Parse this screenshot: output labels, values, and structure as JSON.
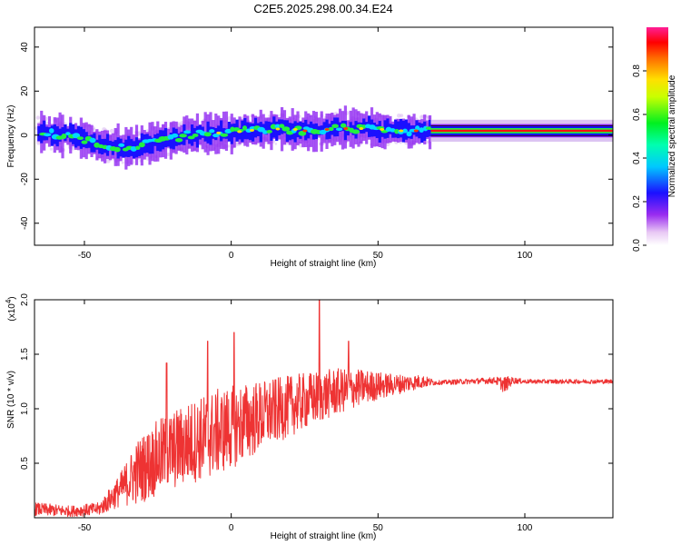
{
  "title": "C2E5.2025.298.00.34.E24",
  "chart_data": [
    {
      "type": "heatmap",
      "name": "spectrogram",
      "xlabel": "Height of straight line (km)",
      "ylabel": "Frequency (Hz)",
      "xlim": [
        -67,
        130
      ],
      "ylim": [
        -50,
        49
      ],
      "xticks": [
        -50,
        0,
        50,
        100
      ],
      "yticks": [
        -40,
        -20,
        0,
        20,
        40
      ],
      "ytick_labels": [
        "-40",
        "-20",
        "0",
        "20",
        "40"
      ],
      "xtick_labels": [
        "-50",
        "0",
        "50",
        "100"
      ],
      "ridge": {
        "x": [
          -65,
          -55,
          -45,
          -35,
          -25,
          -15,
          -5,
          5,
          15,
          25,
          35,
          45,
          55,
          65,
          70,
          80,
          90,
          100,
          110,
          120,
          130
        ],
        "freq": [
          1,
          0,
          -4,
          -6,
          -3,
          0,
          1,
          2,
          3,
          2,
          3,
          3,
          2,
          2,
          2,
          2,
          2,
          2,
          2,
          2,
          2
        ]
      },
      "colorbar": {
        "label": "Normalized spectral amplitude",
        "ticks": [
          "0.0",
          "0.2",
          "0.4",
          "0.6",
          "0.8"
        ],
        "tick_values": [
          0.0,
          0.2,
          0.4,
          0.6,
          0.8
        ],
        "range": [
          0,
          1
        ]
      }
    },
    {
      "type": "line",
      "name": "snr",
      "xlabel": "Height of straight line (km)",
      "ylabel": "SNR (10 * v/v)",
      "multiplier": "(x10",
      "multiplier_exp": "4",
      "multiplier_close": ")",
      "xlim": [
        -67,
        130
      ],
      "ylim": [
        0,
        2.0
      ],
      "xticks": [
        -50,
        0,
        50,
        100
      ],
      "xtick_labels": [
        "-50",
        "0",
        "50",
        "100"
      ],
      "yticks": [
        0.5,
        1.0,
        1.5,
        2.0
      ],
      "ytick_labels": [
        "0.5",
        "1.0",
        "1.5",
        "2.0"
      ],
      "color": "#ee3333",
      "envelope": {
        "x": [
          -67,
          -55,
          -45,
          -38,
          -32,
          -25,
          -15,
          -5,
          5,
          15,
          25,
          35,
          45,
          55,
          65,
          70,
          90,
          93,
          96,
          100,
          130
        ],
        "mean": [
          0.08,
          0.06,
          0.08,
          0.25,
          0.42,
          0.55,
          0.68,
          0.78,
          0.88,
          0.98,
          1.07,
          1.15,
          1.2,
          1.22,
          1.25,
          1.24,
          1.26,
          1.22,
          1.26,
          1.25,
          1.25
        ],
        "amp": [
          0.06,
          0.05,
          0.06,
          0.15,
          0.3,
          0.35,
          0.38,
          0.4,
          0.36,
          0.3,
          0.26,
          0.22,
          0.16,
          0.1,
          0.06,
          0.02,
          0.03,
          0.08,
          0.03,
          0.02,
          0.02
        ]
      },
      "peaks": [
        {
          "x": -22,
          "y": 1.42
        },
        {
          "x": -8,
          "y": 1.62
        },
        {
          "x": 1,
          "y": 1.7
        },
        {
          "x": 30,
          "y": 2.0
        },
        {
          "x": 40,
          "y": 1.62
        }
      ]
    }
  ]
}
